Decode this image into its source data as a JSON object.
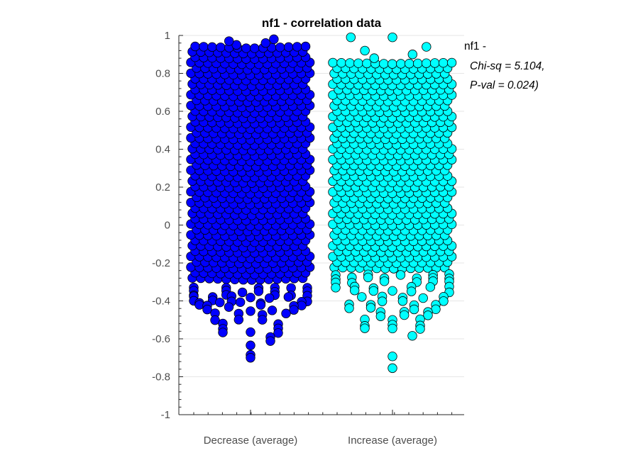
{
  "chart_data": {
    "type": "scatter",
    "subtype": "beeswarm",
    "title": "nf1 - correlation data",
    "xlabel": "",
    "ylabel": "",
    "ylim": [
      -1,
      1
    ],
    "yticks": [
      -1,
      -0.8,
      -0.6,
      -0.4,
      -0.2,
      0,
      0.2,
      0.4,
      0.6,
      0.8,
      1
    ],
    "ytick_labels": [
      "-1",
      "-0.8",
      "-0.6",
      "-0.4",
      "-0.2",
      "0",
      "0.2",
      "0.4",
      "0.6",
      "0.8",
      "1"
    ],
    "categories": [
      "Decrease (average)",
      "Increase (average)"
    ],
    "grid": "horizontal",
    "annotation": {
      "line1": "nf1 -",
      "line2": "Chi-sq = 5.104,",
      "line3": "P-val = 0.024)"
    },
    "series": [
      {
        "category": "Decrease (average)",
        "color": "#0000ff",
        "dense_range": [
          -0.29,
          0.94
        ],
        "upper_outliers": [
          0.95,
          0.96,
          0.97,
          0.98
        ],
        "tail": [
          -0.33,
          -0.35,
          -0.37,
          -0.38,
          -0.4,
          -0.41,
          -0.42,
          -0.43,
          -0.45,
          -0.47,
          -0.5,
          -0.52,
          -0.55,
          -0.57,
          -0.59,
          -0.61,
          -0.63,
          -0.66,
          -0.68,
          -0.7
        ]
      },
      {
        "category": "Increase (average)",
        "color": "#00ffff",
        "dense_range": [
          -0.23,
          0.86
        ],
        "upper_outliers": [
          0.88,
          0.9,
          0.92,
          0.94,
          0.99
        ],
        "tail": [
          -0.26,
          -0.28,
          -0.3,
          -0.33,
          -0.35,
          -0.38,
          -0.4,
          -0.42,
          -0.44,
          -0.46,
          -0.48,
          -0.5,
          -0.53,
          -0.55,
          -0.58,
          -0.6,
          -0.69,
          -0.75
        ]
      }
    ]
  }
}
